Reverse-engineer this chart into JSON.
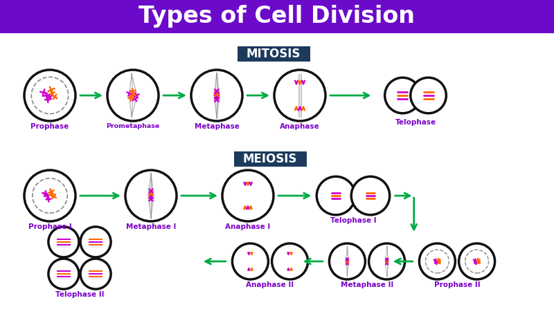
{
  "title": "Types of Cell Division",
  "title_bg": "#6B0AC9",
  "title_color": "#FFFFFF",
  "bg_color": "#FFFFFF",
  "mitosis_label": "MITOSIS",
  "meiosis_label": "MEIOSIS",
  "section_label_bg": "#1B3A5C",
  "section_label_color": "#FFFFFF",
  "label_color": "#7B00C8",
  "arrow_color": "#00AA44",
  "cell_outline": "#111111",
  "cell_lw": 2.5,
  "chrom_purple": "#CC00CC",
  "chrom_orange": "#FF6600",
  "spindle_color": "#888888",
  "nucleus_color": "#888888"
}
